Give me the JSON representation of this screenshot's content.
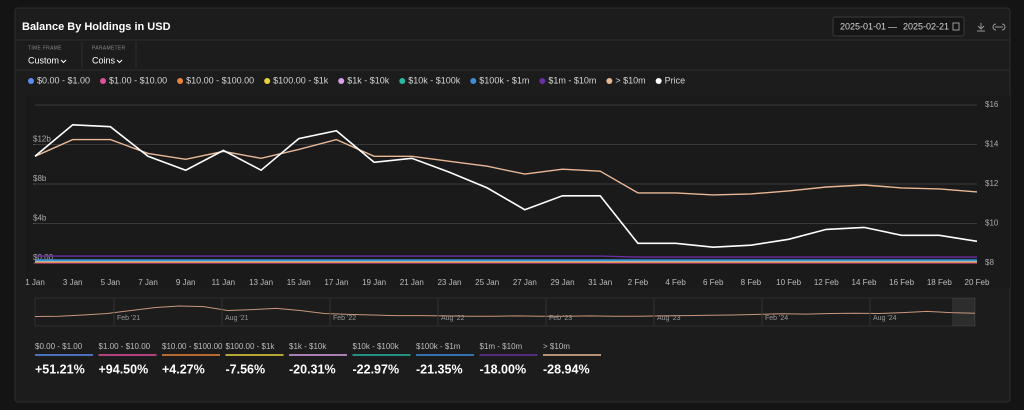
{
  "header": {
    "title": "Balance By Holdings in USD",
    "date_start": "2025-01-01",
    "date_separator": "—",
    "date_end": "2025-02-21"
  },
  "controls": [
    {
      "label": "TIME FRAME",
      "value": "Custom"
    },
    {
      "label": "PARAMETER",
      "value": "Coins"
    }
  ],
  "chart_data": {
    "type": "line",
    "categories": [
      "1 Jan",
      "3 Jan",
      "5 Jan",
      "7 Jan",
      "9 Jan",
      "11 Jan",
      "13 Jan",
      "15 Jan",
      "17 Jan",
      "19 Jan",
      "21 Jan",
      "23 Jan",
      "25 Jan",
      "27 Jan",
      "29 Jan",
      "31 Jan",
      "2 Feb",
      "4 Feb",
      "6 Feb",
      "8 Feb",
      "10 Feb",
      "12 Feb",
      "14 Feb",
      "16 Feb",
      "18 Feb",
      "20 Feb"
    ],
    "ylim": [
      0,
      16
    ],
    "yticks": [
      {
        "value": 0,
        "label": "$0.00"
      },
      {
        "value": 4,
        "label": "$4b"
      },
      {
        "value": 8,
        "label": "$8b"
      },
      {
        "value": 12,
        "label": "$12b"
      }
    ],
    "y2lim": [
      8,
      16
    ],
    "y2ticks": [
      {
        "value": 8,
        "label": "$8"
      },
      {
        "value": 10,
        "label": "$10"
      },
      {
        "value": 12,
        "label": "$12"
      },
      {
        "value": 14,
        "label": "$14"
      },
      {
        "value": 16,
        "label": "$16"
      }
    ],
    "grid": true,
    "series": [
      {
        "name": "$0.00 - $1.00",
        "color": "#5b8def",
        "values": [
          0.05,
          0.05,
          0.05,
          0.05,
          0.05,
          0.05,
          0.05,
          0.05,
          0.05,
          0.05,
          0.05,
          0.05,
          0.05,
          0.05,
          0.05,
          0.05,
          0.05,
          0.05,
          0.05,
          0.05,
          0.05,
          0.05,
          0.05,
          0.05,
          0.05,
          0.05
        ]
      },
      {
        "name": "$1.00 - $10.00",
        "color": "#e04fa0",
        "values": [
          0.02,
          0.02,
          0.02,
          0.02,
          0.02,
          0.02,
          0.02,
          0.02,
          0.02,
          0.02,
          0.02,
          0.02,
          0.02,
          0.02,
          0.02,
          0.02,
          0.02,
          0.02,
          0.02,
          0.02,
          0.02,
          0.02,
          0.02,
          0.02,
          0.02,
          0.02
        ]
      },
      {
        "name": "$10.00 - $100.00",
        "color": "#e8833a",
        "values": [
          0.1,
          0.1,
          0.1,
          0.1,
          0.1,
          0.1,
          0.1,
          0.1,
          0.1,
          0.1,
          0.1,
          0.1,
          0.1,
          0.1,
          0.1,
          0.1,
          0.1,
          0.1,
          0.1,
          0.1,
          0.1,
          0.1,
          0.1,
          0.1,
          0.1,
          0.1
        ]
      },
      {
        "name": "$100.00 - $1k",
        "color": "#e8d43a",
        "values": [
          0.15,
          0.15,
          0.15,
          0.15,
          0.15,
          0.15,
          0.15,
          0.15,
          0.15,
          0.15,
          0.15,
          0.15,
          0.15,
          0.15,
          0.15,
          0.15,
          0.15,
          0.15,
          0.15,
          0.15,
          0.15,
          0.15,
          0.15,
          0.15,
          0.15,
          0.15
        ]
      },
      {
        "name": "$1k - $10k",
        "color": "#d9a0e8",
        "values": [
          0.2,
          0.2,
          0.2,
          0.2,
          0.2,
          0.2,
          0.2,
          0.2,
          0.2,
          0.2,
          0.2,
          0.2,
          0.2,
          0.2,
          0.2,
          0.2,
          0.2,
          0.2,
          0.2,
          0.2,
          0.2,
          0.2,
          0.2,
          0.2,
          0.2,
          0.2
        ]
      },
      {
        "name": "$10k - $100k",
        "color": "#2ab5a5",
        "values": [
          0.25,
          0.25,
          0.25,
          0.25,
          0.25,
          0.25,
          0.25,
          0.25,
          0.25,
          0.25,
          0.25,
          0.25,
          0.25,
          0.25,
          0.25,
          0.25,
          0.25,
          0.25,
          0.25,
          0.25,
          0.25,
          0.25,
          0.25,
          0.25,
          0.25,
          0.25
        ]
      },
      {
        "name": "$100k - $1m",
        "color": "#3b8fd9",
        "values": [
          0.3,
          0.3,
          0.3,
          0.3,
          0.3,
          0.3,
          0.3,
          0.3,
          0.3,
          0.3,
          0.3,
          0.3,
          0.3,
          0.3,
          0.3,
          0.3,
          0.3,
          0.3,
          0.3,
          0.3,
          0.3,
          0.3,
          0.3,
          0.3,
          0.3,
          0.3
        ]
      },
      {
        "name": "$1m - $10m",
        "color": "#6a2fa0",
        "values": [
          0.7,
          0.7,
          0.7,
          0.7,
          0.7,
          0.7,
          0.7,
          0.7,
          0.7,
          0.7,
          0.7,
          0.7,
          0.7,
          0.7,
          0.7,
          0.7,
          0.6,
          0.6,
          0.6,
          0.6,
          0.6,
          0.6,
          0.6,
          0.6,
          0.6,
          0.6
        ]
      },
      {
        "name": "> $10m",
        "color": "#e8b896",
        "values": [
          10.8,
          12.5,
          12.5,
          11.1,
          10.5,
          11.3,
          10.6,
          11.5,
          12.5,
          10.8,
          10.8,
          10.3,
          9.8,
          9.0,
          9.5,
          9.3,
          7.1,
          7.1,
          6.9,
          7.0,
          7.3,
          7.7,
          7.9,
          7.6,
          7.5,
          7.2
        ]
      },
      {
        "name": "Price",
        "color": "#ffffff",
        "axis": "y2",
        "values": [
          13.4,
          15.0,
          14.9,
          13.4,
          12.7,
          13.7,
          12.7,
          14.3,
          14.7,
          13.1,
          13.3,
          12.6,
          11.8,
          10.7,
          11.4,
          11.4,
          9.0,
          9.0,
          8.8,
          8.9,
          9.2,
          9.7,
          9.8,
          9.4,
          9.4,
          9.1
        ]
      }
    ],
    "change_values": [
      51.21,
      94.5,
      4.27,
      -7.56,
      -20.31,
      -22.97,
      -21.35,
      -18.0,
      -28.94
    ],
    "change_labels": [
      "+51.21%",
      "+94.50%",
      "+4.27%",
      "-7.56%",
      "-20.31%",
      "-22.97%",
      "-21.35%",
      "-18.00%",
      "-28.94%"
    ]
  },
  "navigator": {
    "labels": [
      "Feb '21",
      "Aug '21",
      "Feb '22",
      "Aug '22",
      "Feb '23",
      "Aug '23",
      "Feb '24",
      "Aug '24"
    ],
    "ylim": [
      0,
      8
    ],
    "values": [
      2.5,
      2.6,
      3,
      3.5,
      4.5,
      5.5,
      6,
      5.8,
      4.5,
      4.8,
      5.2,
      4.5,
      3.5,
      3.2,
      3,
      2.8,
      2.8,
      2.7,
      2.6,
      2.6,
      2.7,
      2.6,
      2.6,
      2.7,
      2.6,
      2.6,
      2.7,
      2.8,
      2.9,
      3,
      3.2,
      3.4,
      3.3,
      3.5,
      3.6,
      3.5,
      3.8,
      4.2,
      3.8,
      3.6
    ]
  }
}
